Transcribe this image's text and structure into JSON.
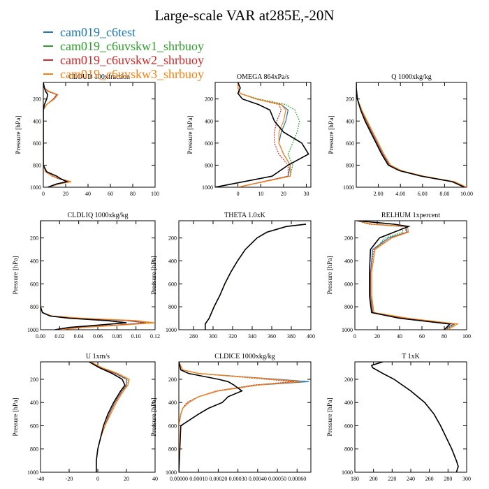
{
  "title": "Large-scale VAR at285E,-20N",
  "legend": [
    {
      "label": "cam019_c6test",
      "color": "#1f77b4"
    },
    {
      "label": "cam019_c6uvskw1_shrbuoy",
      "color": "#2ca02c"
    },
    {
      "label": "cam019_c6uvskw2_shrbuoy",
      "color": "#d62728"
    },
    {
      "label": "cam019_c6uvskw3_shrbuoy",
      "color": "#ff7f0e"
    }
  ],
  "control_color": "#000000",
  "chart_data": [
    {
      "type": "line",
      "title": "CLOUD 100xfraction",
      "ylabel": "Pressure [hPa]",
      "xlim": [
        0,
        100
      ],
      "ylim": [
        1000,
        50
      ],
      "xticks": [
        "0",
        "20",
        "40",
        "60",
        "80",
        "100"
      ],
      "xtickvals": [
        0,
        20,
        40,
        60,
        80,
        100
      ],
      "yticks": [
        200,
        400,
        600,
        800,
        1000
      ],
      "pressure": [
        50,
        100,
        130,
        160,
        200,
        250,
        300,
        400,
        600,
        800,
        860,
        900,
        920,
        950,
        970,
        1000
      ],
      "series": [
        {
          "values": [
            0,
            1,
            4,
            12,
            9,
            3,
            0,
            0,
            0,
            0,
            2,
            9,
            13,
            24,
            14,
            4
          ]
        },
        {
          "values": [
            0,
            1,
            4,
            12,
            9,
            3,
            0,
            0,
            0,
            0,
            2,
            8,
            13,
            23,
            13,
            4
          ]
        },
        {
          "values": [
            0,
            1,
            4,
            12,
            9,
            3,
            0,
            0,
            0,
            0,
            2,
            8,
            13,
            23,
            13,
            4
          ]
        },
        {
          "values": [
            0,
            1,
            5,
            13,
            10,
            3,
            0,
            0,
            0,
            0,
            2,
            9,
            14,
            25,
            14,
            4
          ]
        },
        {
          "values": [
            0,
            1,
            2,
            4,
            3,
            1,
            0,
            0,
            0,
            0,
            3,
            12,
            15,
            21,
            12,
            4
          ]
        }
      ]
    },
    {
      "type": "line",
      "title": "OMEGA 864xPa/s",
      "ylabel": "Pressure [hPa]",
      "xlim": [
        -10,
        32
      ],
      "ylim": [
        1000,
        50
      ],
      "xticks": [
        "0",
        "10",
        "20",
        "30"
      ],
      "xtickvals": [
        0,
        10,
        20,
        30
      ],
      "yticks": [
        200,
        400,
        600,
        800,
        1000
      ],
      "pressure": [
        50,
        100,
        150,
        200,
        250,
        300,
        400,
        500,
        600,
        700,
        800,
        900,
        1000
      ],
      "series": [
        {
          "values": [
            0,
            0,
            1,
            8,
            19,
            22,
            21,
            19,
            18,
            20,
            23,
            22,
            0
          ]
        },
        {
          "values": [
            0,
            0,
            1,
            9,
            21,
            25,
            27,
            26,
            24,
            22,
            24,
            23,
            0
          ]
        },
        {
          "values": [
            0,
            0,
            1,
            8,
            18,
            19,
            17,
            16,
            16,
            18,
            22,
            22,
            0
          ]
        },
        {
          "values": [
            0,
            0,
            1,
            8,
            19,
            21,
            20,
            18,
            18,
            20,
            23,
            23,
            0
          ]
        },
        {
          "values": [
            0,
            1,
            0,
            2,
            9,
            14,
            16,
            20,
            28,
            31,
            22,
            15,
            -10
          ]
        }
      ]
    },
    {
      "type": "line",
      "title": "Q 1000xkg/kg",
      "ylabel": "Pressure [hPa]",
      "xlim": [
        0,
        10
      ],
      "ylim": [
        1000,
        50
      ],
      "xticks": [
        "2.00",
        "4.00",
        "6.00",
        "8.00",
        "10.00"
      ],
      "xtickvals": [
        2,
        4,
        6,
        8,
        10
      ],
      "yticks": [
        200,
        400,
        600,
        800,
        1000
      ],
      "pressure": [
        50,
        100,
        150,
        200,
        300,
        400,
        500,
        600,
        700,
        800,
        850,
        900,
        950,
        1000
      ],
      "series": [
        {
          "values": [
            0,
            0,
            0.05,
            0.1,
            0.5,
            0.9,
            1.4,
            1.9,
            2.4,
            3.0,
            4.0,
            6.0,
            8.8,
            9.9
          ]
        },
        {
          "values": [
            0,
            0,
            0.05,
            0.1,
            0.5,
            0.9,
            1.5,
            2.0,
            2.5,
            3.1,
            4.1,
            6.1,
            8.9,
            10.0
          ]
        },
        {
          "values": [
            0,
            0,
            0.05,
            0.1,
            0.5,
            0.9,
            1.4,
            1.9,
            2.4,
            3.0,
            4.0,
            6.0,
            8.8,
            9.9
          ]
        },
        {
          "values": [
            0,
            0,
            0.05,
            0.1,
            0.5,
            1.0,
            1.5,
            2.0,
            2.5,
            3.1,
            4.1,
            6.1,
            8.9,
            10.0
          ]
        },
        {
          "values": [
            0,
            0,
            0.05,
            0.1,
            0.4,
            0.8,
            1.3,
            1.8,
            2.3,
            2.9,
            3.9,
            5.9,
            8.7,
            9.8
          ]
        }
      ]
    },
    {
      "type": "line",
      "title": "CLDLIQ 1000xkg/kg",
      "ylabel": "Pressure [hPa]",
      "xlim": [
        0,
        0.12
      ],
      "ylim": [
        1000,
        50
      ],
      "xticks": [
        "0.00",
        "0.02",
        "0.04",
        "0.06",
        "0.08",
        "0.10",
        "0.12"
      ],
      "xtickvals": [
        0,
        0.02,
        0.04,
        0.06,
        0.08,
        0.1,
        0.12
      ],
      "yticks": [
        200,
        400,
        600,
        800,
        1000
      ],
      "pressure": [
        50,
        400,
        800,
        850,
        880,
        900,
        920,
        940,
        960,
        980,
        1000
      ],
      "series": [
        {
          "values": [
            0,
            0,
            0,
            0.002,
            0.01,
            0.04,
            0.09,
            0.11,
            0.08,
            0.04,
            0.02
          ]
        },
        {
          "values": [
            0,
            0,
            0,
            0.002,
            0.01,
            0.04,
            0.09,
            0.115,
            0.08,
            0.04,
            0.02
          ]
        },
        {
          "values": [
            0,
            0,
            0,
            0.002,
            0.01,
            0.04,
            0.09,
            0.11,
            0.08,
            0.04,
            0.02
          ]
        },
        {
          "values": [
            0,
            0,
            0,
            0.002,
            0.012,
            0.045,
            0.1,
            0.12,
            0.085,
            0.045,
            0.02
          ]
        },
        {
          "values": [
            0,
            0,
            0,
            0.002,
            0.01,
            0.03,
            0.07,
            0.09,
            0.06,
            0.03,
            0.015
          ]
        }
      ]
    },
    {
      "type": "line",
      "title": "THETA 1.0xK",
      "ylabel": "Pressure [hPa]",
      "xlim": [
        265,
        400
      ],
      "ylim": [
        1000,
        50
      ],
      "xticks": [
        "280",
        "300",
        "320",
        "340",
        "360",
        "380",
        "400"
      ],
      "xtickvals": [
        280,
        300,
        320,
        340,
        360,
        380,
        400
      ],
      "yticks": [
        200,
        400,
        600,
        800,
        1000
      ],
      "pressure": [
        80,
        100,
        150,
        200,
        300,
        400,
        500,
        600,
        700,
        800,
        900,
        950,
        1000
      ],
      "series": [
        {
          "values": [
            395,
            375,
            355,
            345,
            333,
            325,
            318,
            312,
            307,
            301,
            296,
            292,
            292
          ]
        },
        {
          "values": [
            395,
            375,
            355,
            345,
            333,
            325,
            318,
            312,
            307,
            301,
            296,
            292,
            292
          ]
        },
        {
          "values": [
            395,
            375,
            355,
            345,
            333,
            325,
            318,
            312,
            307,
            301,
            296,
            292,
            292
          ]
        },
        {
          "values": [
            395,
            375,
            355,
            345,
            333,
            325,
            318,
            312,
            307,
            301,
            296,
            292,
            292
          ]
        },
        {
          "values": [
            395,
            375,
            355,
            345,
            333,
            325,
            318,
            312,
            307,
            301,
            296,
            292,
            292
          ]
        }
      ]
    },
    {
      "type": "line",
      "title": "RELHUM 1xpercent",
      "ylabel": "Pressure [hPa]",
      "xlim": [
        0,
        100
      ],
      "ylim": [
        1000,
        50
      ],
      "xticks": [
        "0",
        "20",
        "40",
        "60",
        "80",
        "100"
      ],
      "xtickvals": [
        0,
        20,
        40,
        60,
        80,
        100
      ],
      "yticks": [
        200,
        400,
        600,
        800,
        1000
      ],
      "pressure": [
        50,
        80,
        100,
        150,
        200,
        300,
        500,
        700,
        850,
        900,
        950,
        1000
      ],
      "series": [
        {
          "values": [
            2,
            15,
            45,
            47,
            30,
            16,
            14,
            14,
            16,
            45,
            88,
            80
          ]
        },
        {
          "values": [
            2,
            12,
            42,
            43,
            27,
            18,
            15,
            15,
            17,
            47,
            90,
            82
          ]
        },
        {
          "values": [
            2,
            14,
            45,
            46,
            32,
            17,
            14,
            14,
            16,
            45,
            89,
            81
          ]
        },
        {
          "values": [
            2,
            16,
            47,
            48,
            33,
            18,
            15,
            15,
            17,
            48,
            92,
            83
          ]
        },
        {
          "values": [
            2,
            35,
            48,
            35,
            22,
            14,
            13,
            13,
            15,
            40,
            85,
            80
          ]
        }
      ]
    },
    {
      "type": "line",
      "title": "U 1xm/s",
      "ylabel": "Pressure [hPa]",
      "xlim": [
        -40,
        40
      ],
      "ylim": [
        1000,
        50
      ],
      "xticks": [
        "-40",
        "-20",
        "0",
        "20",
        "40"
      ],
      "xtickvals": [
        -40,
        -20,
        0,
        20,
        40
      ],
      "yticks": [
        200,
        400,
        600,
        800,
        1000
      ],
      "pressure": [
        50,
        100,
        150,
        200,
        250,
        300,
        400,
        500,
        600,
        700,
        800,
        900,
        1000
      ],
      "series": [
        {
          "values": [
            -5,
            2,
            12,
            20,
            20,
            17,
            12,
            8,
            5,
            2,
            0,
            -1,
            -1
          ]
        },
        {
          "values": [
            -5,
            2,
            13,
            21,
            21,
            17,
            12,
            8,
            5,
            2,
            0,
            -1,
            -1
          ]
        },
        {
          "values": [
            -5,
            2,
            12,
            20,
            20,
            17,
            12,
            8,
            5,
            2,
            0,
            -1,
            -1
          ]
        },
        {
          "values": [
            -5,
            3,
            14,
            22,
            21,
            18,
            13,
            9,
            5,
            2,
            0,
            -1,
            -1
          ]
        },
        {
          "values": [
            -6,
            1,
            10,
            17,
            19,
            16,
            11,
            7,
            4,
            2,
            0,
            -1,
            -1
          ]
        }
      ]
    },
    {
      "type": "line",
      "title": "CLDICE 1000xkg/kg",
      "ylabel": "Pressure [hPa]",
      "xlim": [
        0,
        0.00067
      ],
      "ylim": [
        1000,
        50
      ],
      "xticks": [
        "0.00000",
        "0.00010",
        "0.00020",
        "0.00030",
        "0.00040",
        "0.00050",
        "0.00060"
      ],
      "xtickvals": [
        0,
        0.0001,
        0.0002,
        0.0003,
        0.0004,
        0.0005,
        0.0006
      ],
      "yticks": [
        200,
        400,
        600,
        800,
        1000
      ],
      "pressure": [
        50,
        120,
        150,
        200,
        220,
        250,
        300,
        350,
        400,
        450,
        500,
        600,
        1000
      ],
      "series": [
        {
          "values": [
            0,
            2e-05,
            0.0001,
            0.0005,
            0.00066,
            0.0004,
            0.0002,
            0.0001,
            5e-05,
            2e-05,
            1e-05,
            0,
            0
          ]
        },
        {
          "values": [
            0,
            2e-05,
            0.0001,
            0.00045,
            0.0006,
            0.00038,
            0.0002,
            0.0001,
            5e-05,
            2e-05,
            1e-05,
            0,
            0
          ]
        },
        {
          "values": [
            0,
            2e-05,
            0.0001,
            0.00045,
            0.00058,
            0.00038,
            0.00019,
            0.0001,
            4e-05,
            2e-05,
            1e-05,
            0,
            0
          ]
        },
        {
          "values": [
            0,
            2e-05,
            0.0001,
            0.00048,
            0.00062,
            0.0004,
            0.0002,
            0.0001,
            5e-05,
            2e-05,
            1e-05,
            0,
            0
          ]
        },
        {
          "values": [
            0,
            1e-05,
            5e-05,
            0.0002,
            0.00025,
            0.00028,
            0.00032,
            0.00025,
            0.00022,
            0.00015,
            0.0001,
            1e-05,
            0
          ]
        }
      ]
    },
    {
      "type": "line",
      "title": "T 1xK",
      "ylabel": "Pressure [hPa]",
      "xlim": [
        180,
        300
      ],
      "ylim": [
        1000,
        50
      ],
      "xticks": [
        "180",
        "200",
        "220",
        "240",
        "260",
        "280",
        "300"
      ],
      "xtickvals": [
        180,
        200,
        220,
        240,
        260,
        280,
        300
      ],
      "yticks": [
        200,
        400,
        600,
        800,
        1000
      ],
      "pressure": [
        50,
        80,
        100,
        150,
        200,
        300,
        400,
        500,
        600,
        700,
        800,
        900,
        950,
        1000
      ],
      "series": [
        {
          "values": [
            210,
            198,
            199,
            210,
            222,
            240,
            255,
            265,
            272,
            278,
            284,
            289,
            291,
            289
          ]
        },
        {
          "values": [
            210,
            198,
            199,
            210,
            222,
            240,
            255,
            265,
            272,
            278,
            284,
            289,
            291,
            289
          ]
        },
        {
          "values": [
            210,
            198,
            199,
            210,
            222,
            240,
            255,
            265,
            272,
            278,
            284,
            289,
            291,
            289
          ]
        },
        {
          "values": [
            210,
            198,
            199,
            210,
            222,
            240,
            255,
            265,
            272,
            278,
            284,
            289,
            291,
            289
          ]
        },
        {
          "values": [
            210,
            198,
            199,
            210,
            222,
            240,
            255,
            265,
            272,
            278,
            284,
            289,
            291,
            289
          ]
        }
      ]
    }
  ]
}
